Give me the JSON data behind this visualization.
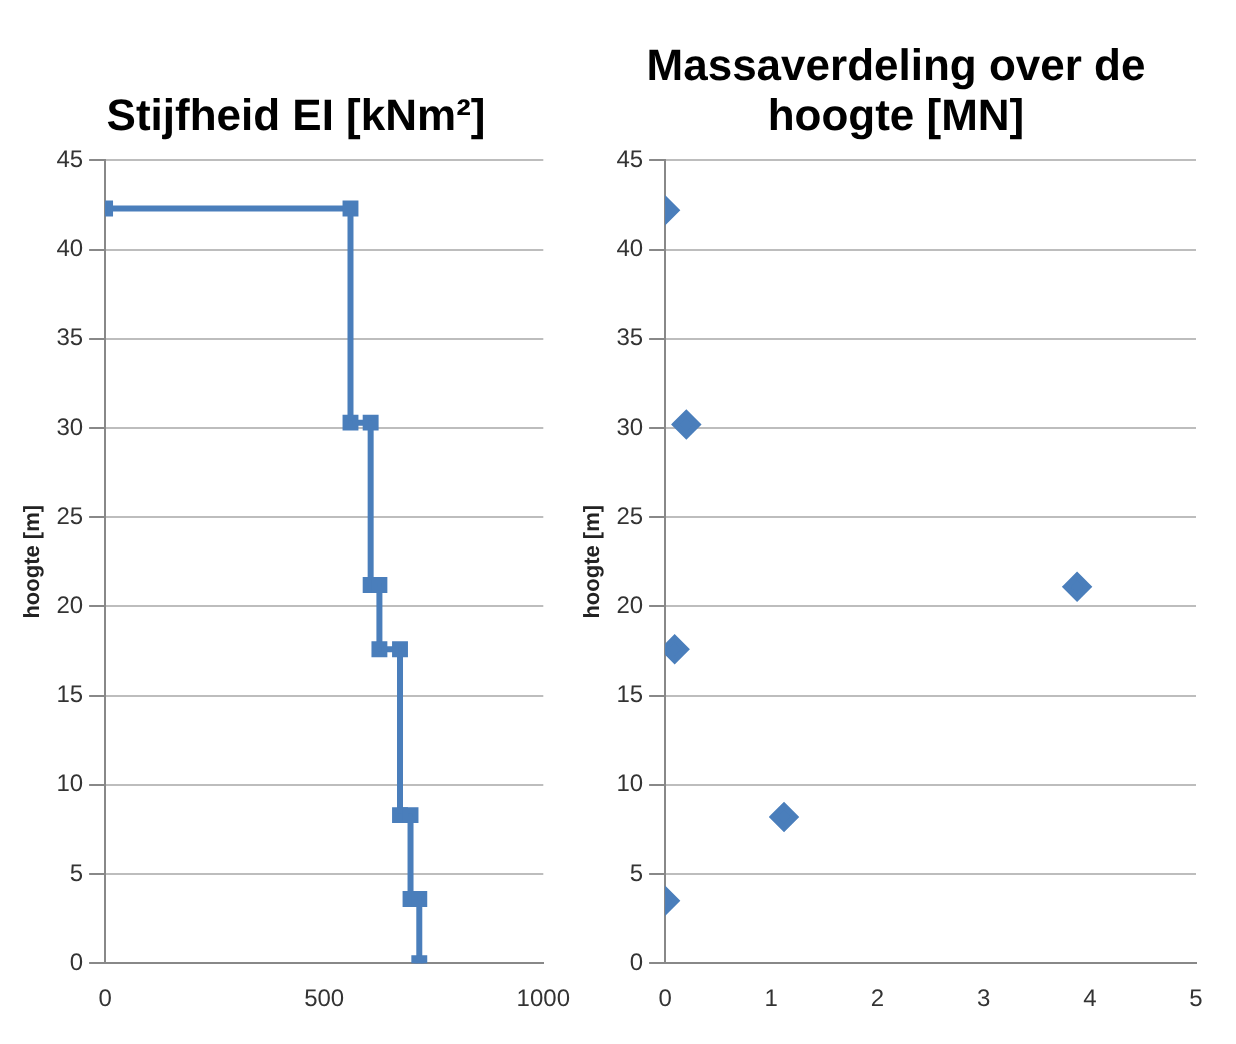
{
  "chart_data": [
    {
      "type": "line",
      "title": "Stijfheid EI [kNm²]",
      "ylabel": "hoogte [m]",
      "marker": "square",
      "grid": "y",
      "legend": false,
      "xlim": [
        0,
        1000
      ],
      "xticks": [
        0,
        500,
        1000
      ],
      "ylim": [
        0,
        45
      ],
      "yticks": [
        0,
        5,
        10,
        15,
        20,
        25,
        30,
        35,
        40,
        45
      ],
      "series": [
        {
          "color": "#4a7ebb",
          "x": [
            0,
            560,
            560,
            606,
            606,
            626,
            626,
            673,
            673,
            697,
            697,
            717,
            717
          ],
          "values": [
            42.3,
            42.3,
            30.3,
            30.3,
            21.2,
            21.2,
            17.6,
            17.6,
            8.3,
            8.3,
            3.6,
            3.6,
            0
          ]
        }
      ]
    },
    {
      "type": "scatter",
      "title": "Massaverdeling over de hoogte [MN]",
      "ylabel": "hoogte [m]",
      "marker": "diamond",
      "grid": "y",
      "legend": false,
      "xlim": [
        0,
        5
      ],
      "xticks": [
        0,
        1,
        2,
        3,
        4,
        5
      ],
      "ylim": [
        0,
        45
      ],
      "yticks": [
        0,
        5,
        10,
        15,
        20,
        25,
        30,
        35,
        40,
        45
      ],
      "series": [
        {
          "color": "#4a7ebb",
          "x": [
            0,
            0.2,
            3.88,
            0.09,
            1.12,
            0
          ],
          "values": [
            42.2,
            30.2,
            21.1,
            17.6,
            8.2,
            3.5
          ]
        }
      ]
    }
  ]
}
